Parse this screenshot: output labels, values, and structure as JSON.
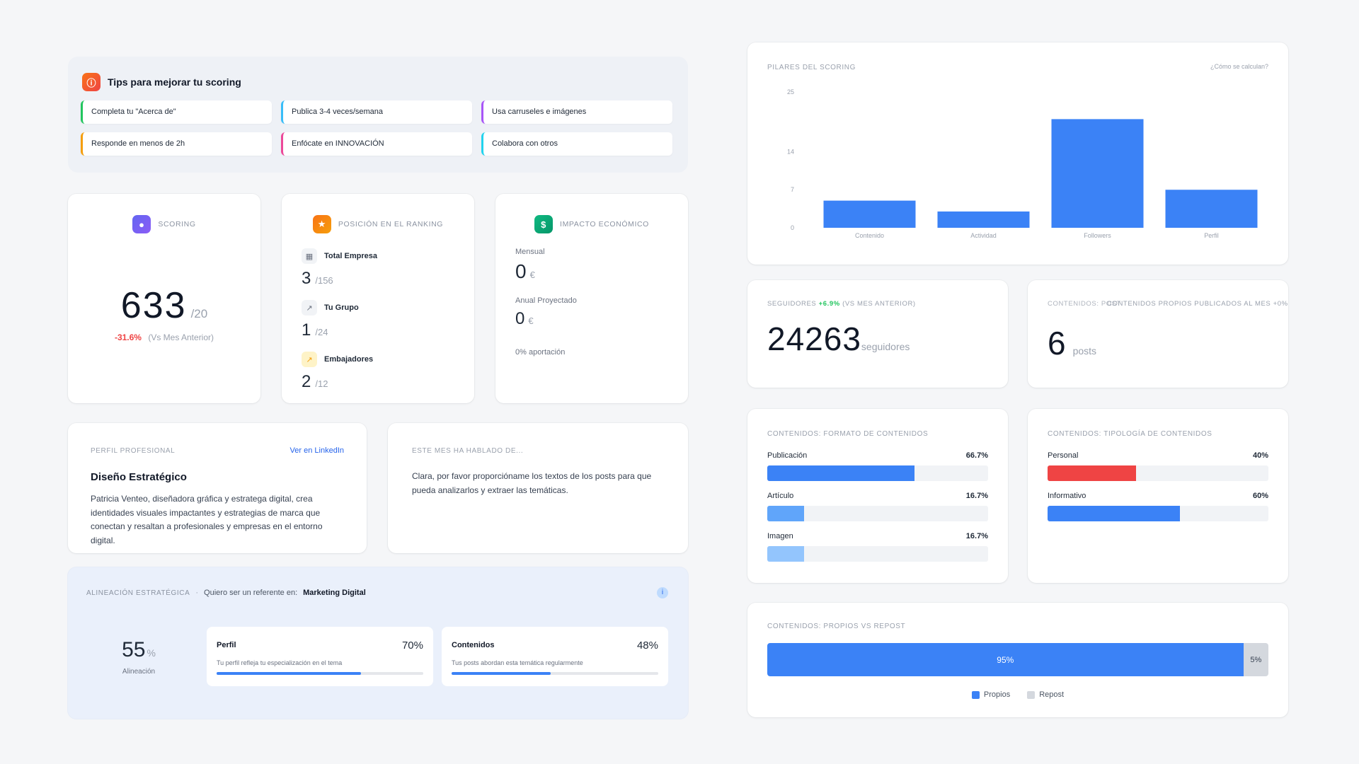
{
  "tips": {
    "title": "Tips para mejorar tu scoring",
    "items": [
      {
        "text": "Completa tu \"Acerca de\"",
        "color": "#22c55e"
      },
      {
        "text": "Publica 3-4 veces/semana",
        "color": "#38bdf8"
      },
      {
        "text": "Usa carruseles e imágenes",
        "color": "#a855f7"
      },
      {
        "text": "Responde en menos de 2h",
        "color": "#f59e0b"
      },
      {
        "text": "Enfócate en INNOVACIÓN",
        "color": "#ec4899"
      },
      {
        "text": "Colabora con otros",
        "color": "#22d3ee"
      }
    ]
  },
  "scoring": {
    "label": "Scoring",
    "value": "633",
    "max": "/20",
    "change": "-31.6%",
    "change_note": "(Vs Mes Anterior)"
  },
  "ranking": {
    "label": "Posición en el ranking",
    "rows": [
      {
        "label": "Total Empresa",
        "value": "3",
        "total": "/156",
        "icon": "building-icon"
      },
      {
        "label": "Tu Grupo",
        "value": "1",
        "total": "/24",
        "icon": "trend-icon"
      },
      {
        "label": "Embajadores",
        "value": "2",
        "total": "/12",
        "icon": "trend-up-icon"
      }
    ]
  },
  "impacto": {
    "label": "Impacto económico",
    "mensual_label": "Mensual",
    "mensual_value": "0",
    "anual_label": "Anual Proyectado",
    "anual_value": "0",
    "currency": "€",
    "aportacion": "0% aportación"
  },
  "perfil": {
    "label": "Perfil profesional",
    "link": "Ver en LinkedIn",
    "title": "Diseño Estratégico",
    "description": "Patricia Venteo, diseñadora gráfica y estratega digital, crea identidades visuales impactantes y estrategias de marca que conectan y resaltan a profesionales y empresas en el entorno digital."
  },
  "hablado": {
    "label": "Este mes ha hablado de...",
    "text": "Clara, por favor proporcióname los textos de los posts para que pueda analizarlos y extraer las temáticas."
  },
  "alineacion": {
    "label": "Alineación estratégica",
    "separator": "·",
    "prompt": "Quiero ser un referente en:",
    "topic": "Marketing Digital",
    "value": "55",
    "unit": "%",
    "sub": "Alineación",
    "perfil": {
      "title": "Perfil",
      "pct": "70%",
      "desc": "Tu perfil refleja tu especialización en el tema",
      "fill": 0.7
    },
    "contenidos": {
      "title": "Contenidos",
      "pct": "48%",
      "desc": "Tus posts abordan esta temática regularmente",
      "fill": 0.48
    }
  },
  "pilares": {
    "title": "Pilares del scoring",
    "link": "¿Cómo se calculan?"
  },
  "chart_data": {
    "type": "bar",
    "title": "Pilares del scoring",
    "categories": [
      "Contenido",
      "Actividad",
      "Followers",
      "Perfil"
    ],
    "values": [
      5,
      3,
      20,
      7
    ],
    "yticks": [
      0,
      7,
      14,
      25
    ],
    "ylim": [
      0,
      25
    ],
    "color": "#3b82f6",
    "grid": false
  },
  "seguidores": {
    "label_prefix": "Seguidores",
    "change": "+6.9%",
    "label_suffix": "(Vs Mes Anterior)",
    "value": "24263",
    "unit": "seguidores"
  },
  "posts": {
    "label_a": "Contenidos: Post",
    "label_b": "Contenidos propios publicados al mes +0%",
    "value": "6",
    "unit": "posts"
  },
  "formato": {
    "label": "Contenidos: formato de contenidos",
    "items": [
      {
        "label": "Publicación",
        "pct": "66.7%",
        "fill": 0.667,
        "color": "#3b82f6"
      },
      {
        "label": "Artículo",
        "pct": "16.7%",
        "fill": 0.167,
        "color": "#60a5fa"
      },
      {
        "label": "Imagen",
        "pct": "16.7%",
        "fill": 0.167,
        "color": "#93c5fd"
      }
    ]
  },
  "tipologia": {
    "label": "Contenidos: tipología de contenidos",
    "items": [
      {
        "label": "Personal",
        "pct": "40%",
        "fill": 0.4,
        "color": "#ef4444"
      },
      {
        "label": "Informativo",
        "pct": "60%",
        "fill": 0.6,
        "color": "#3b82f6"
      }
    ]
  },
  "propios": {
    "label": "Contenidos: propios vs repost",
    "propios_pct": "95%",
    "repost_pct": "5%",
    "propios_fill": 0.95,
    "legend_propios": "Propios",
    "legend_repost": "Repost",
    "color_propios": "#3b82f6",
    "color_repost": "#d4d8de"
  }
}
